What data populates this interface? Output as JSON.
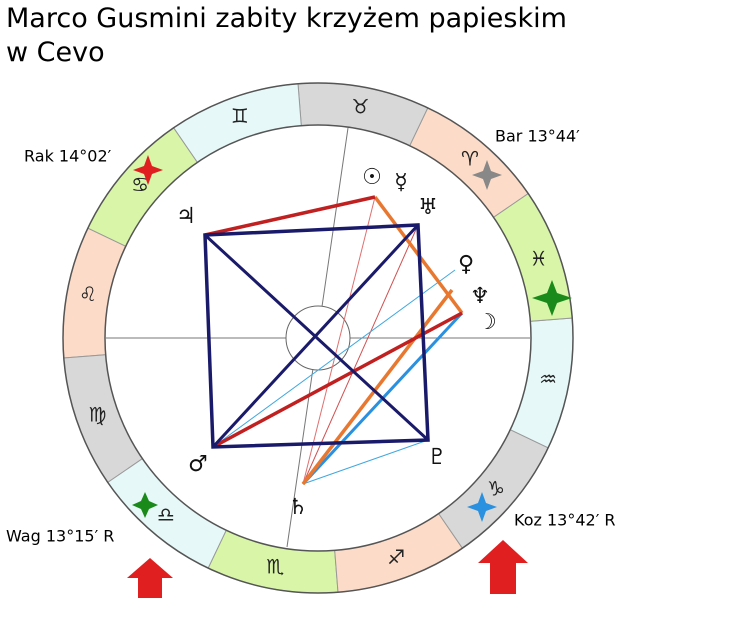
{
  "header": {
    "title_lines": [
      "Marco Gusmini zabity krzyżem papieskim",
      "w Cevo"
    ]
  },
  "labels": {
    "cancer": "Rak 14°02′",
    "aries": "Bar 13°44′",
    "libra": "Wag 13°15′  R",
    "capricorn": "Koz 13°42′  R"
  },
  "signs": [
    "♈",
    "♉",
    "♊",
    "♋",
    "♌",
    "♍",
    "♎",
    "♏",
    "♐",
    "♑",
    "♒",
    "♓"
  ],
  "planets": [
    "☉",
    "☿",
    "♅",
    "♀",
    "♆",
    "☽",
    "♃",
    "♂",
    "♄",
    "♇"
  ]
}
